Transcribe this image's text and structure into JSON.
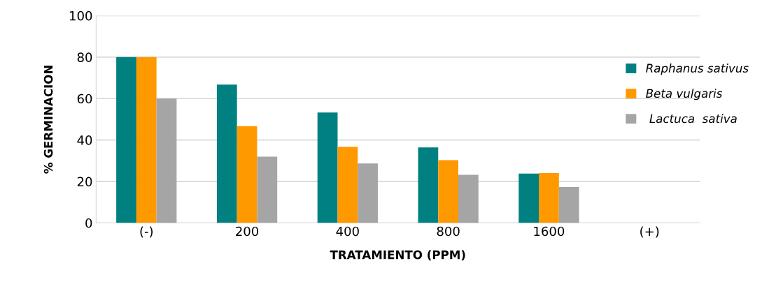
{
  "chart_data": {
    "type": "bar",
    "categories": [
      "(-)",
      "200",
      "400",
      "800",
      "1600",
      "(+)"
    ],
    "series": [
      {
        "name": "Raphanus sativus",
        "color": "#008080",
        "values": [
          80,
          66.7,
          53.3,
          36.4,
          23.8,
          0
        ]
      },
      {
        "name": "Beta vulgaris",
        "color": "#ff9900",
        "values": [
          80,
          46.7,
          36.7,
          30.3,
          24.1,
          0
        ]
      },
      {
        "name": " Lactuca  sativa",
        "color": "#a5a5a5",
        "values": [
          60,
          32,
          28.7,
          23.2,
          17.3,
          0
        ]
      }
    ],
    "xlabel": "TRATAMIENTO (PPM)",
    "ylabel": "% GERMINACION",
    "ylim": [
      0,
      100
    ],
    "yticks": [
      0,
      20,
      40,
      60,
      80,
      100
    ],
    "grid": "y",
    "legend": "right"
  }
}
